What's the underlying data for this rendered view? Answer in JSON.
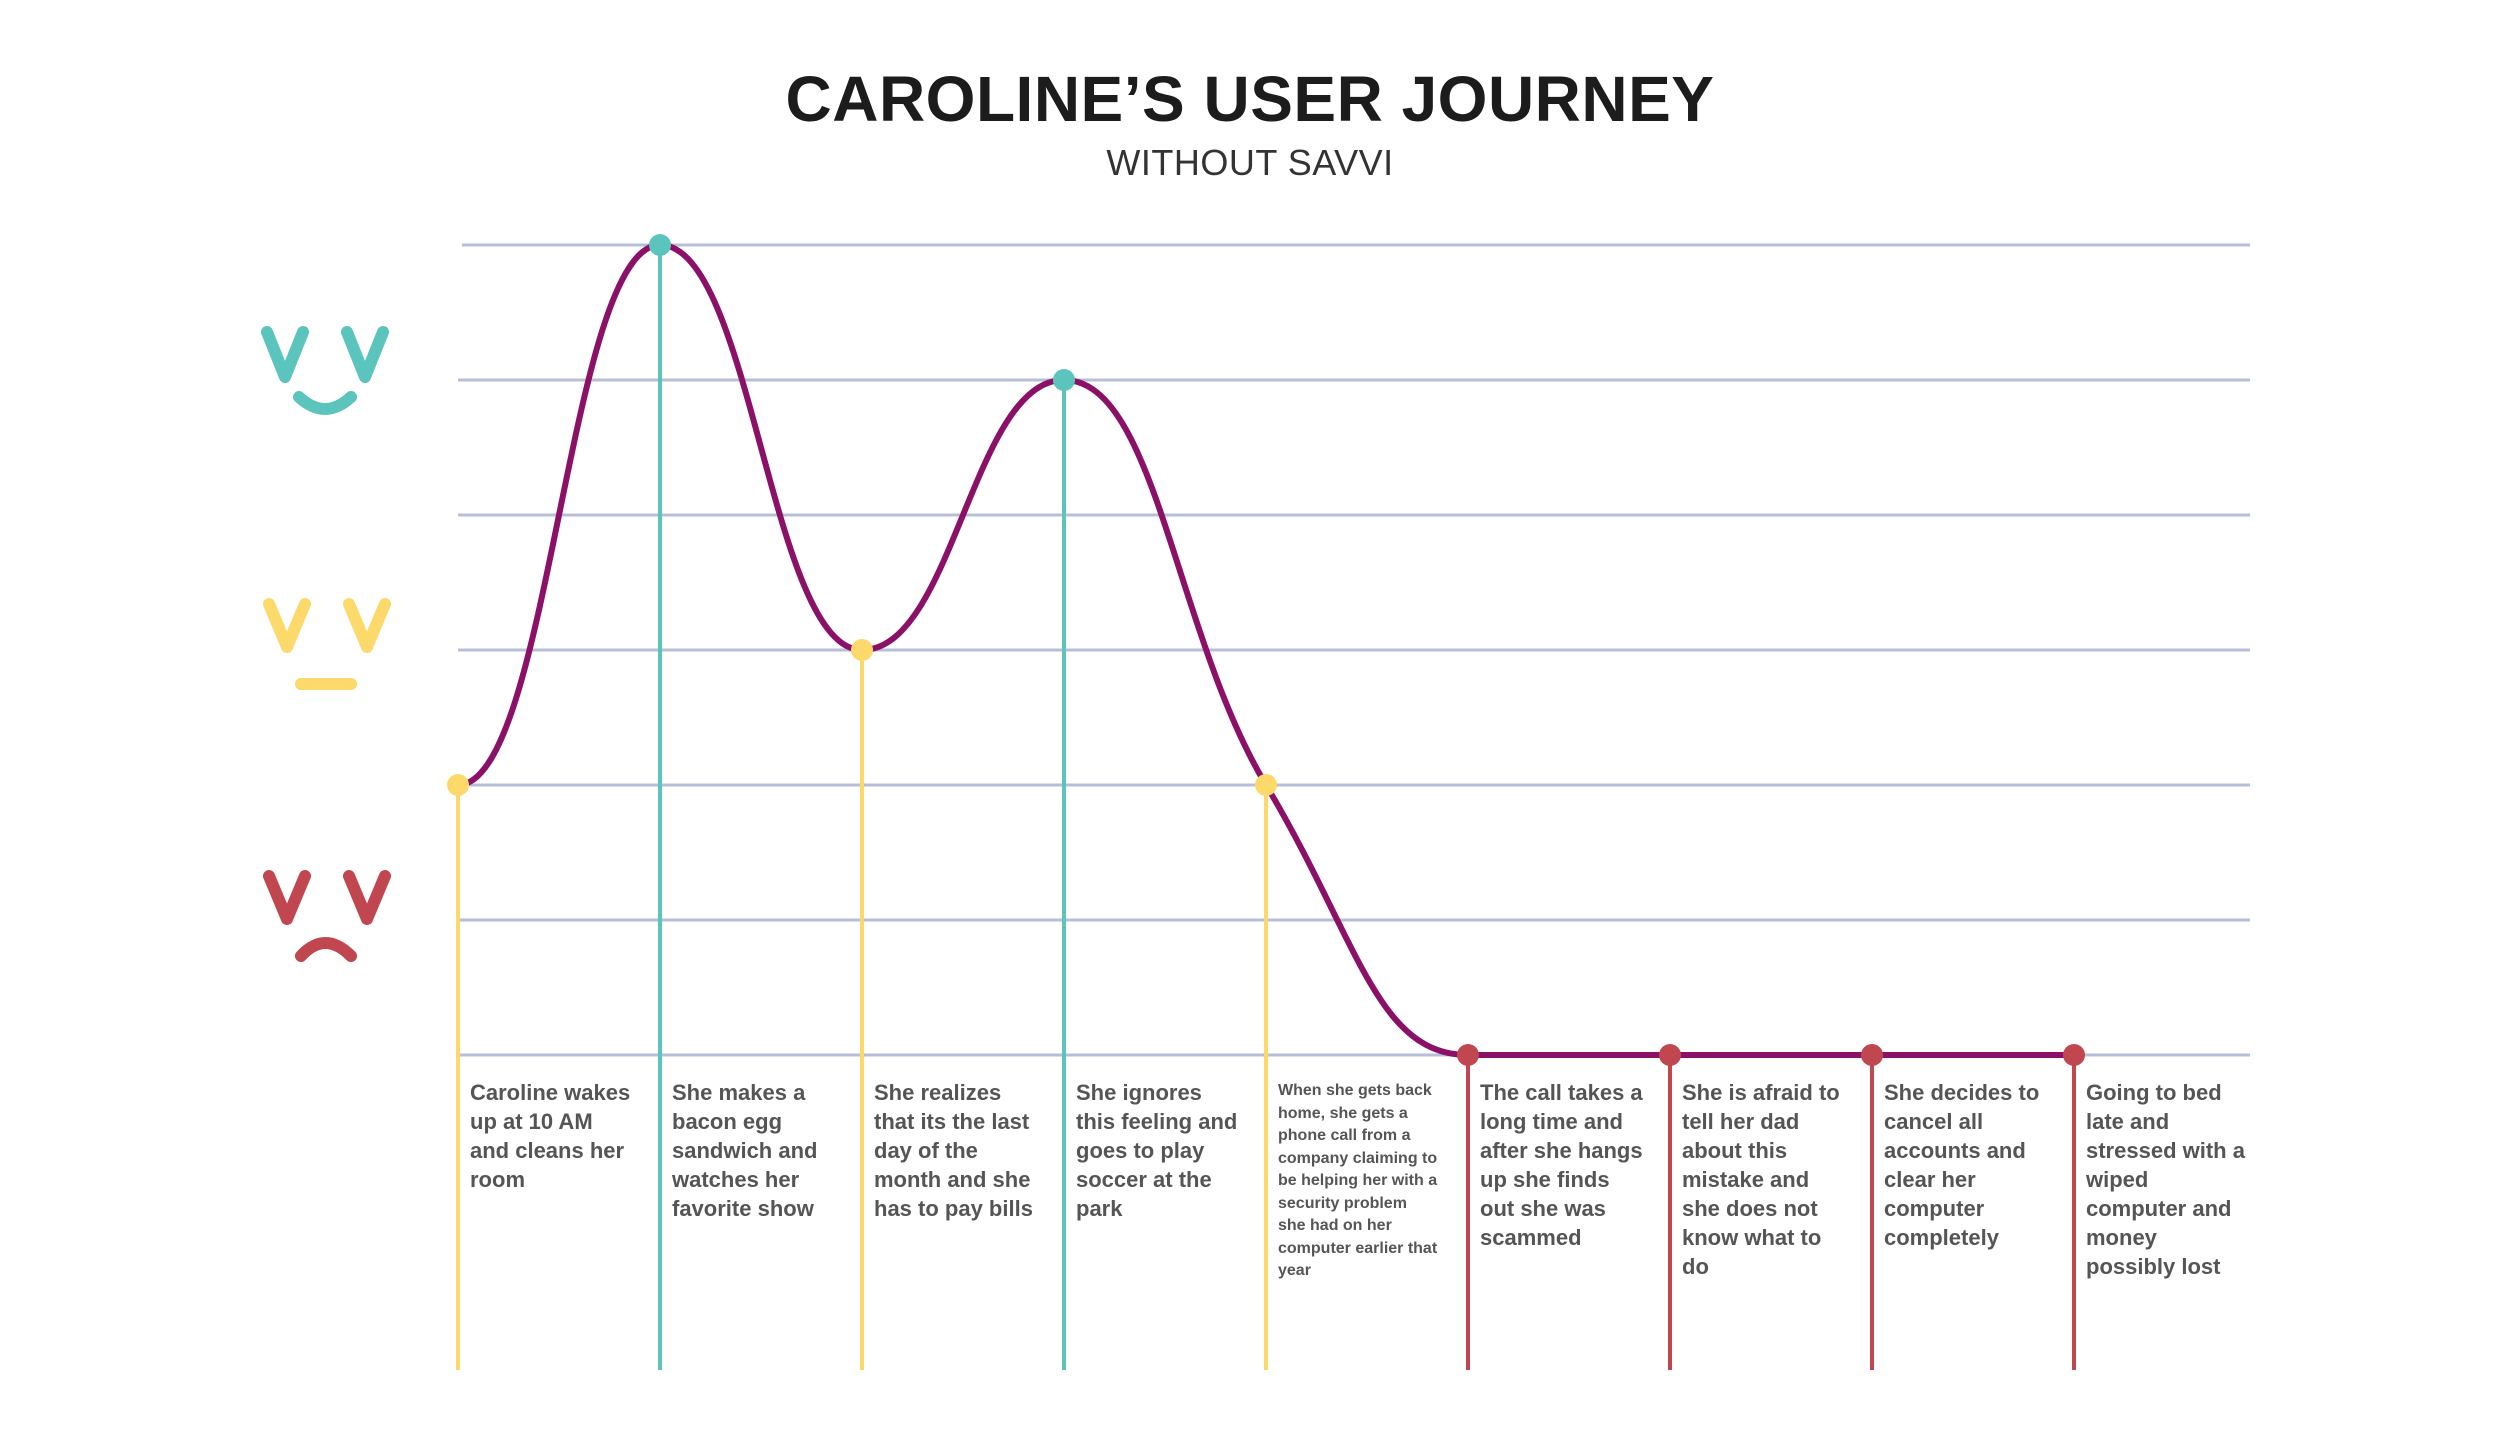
{
  "title": "CAROLINE’S USER JOURNEY",
  "subtitle": "WITHOUT SAVVI",
  "colors": {
    "happy": "#5bc4bd",
    "neutral": "#fcd96a",
    "sad": "#c0464f",
    "curve": "#8b1068",
    "grid": "#b7bfd8",
    "text": "#555555"
  },
  "emotion_scale": [
    {
      "mood": "happy",
      "icon": "happy-face-icon"
    },
    {
      "mood": "neutral",
      "icon": "neutral-face-icon"
    },
    {
      "mood": "sad",
      "icon": "sad-face-icon"
    }
  ],
  "stages": [
    {
      "text": "Caroline wakes up at 10 AM and cleans her room",
      "mood": "neutral",
      "level": 2
    },
    {
      "text": "She makes a bacon egg sandwich and watches her favorite show",
      "mood": "happy",
      "level": 6
    },
    {
      "text": "She realizes that its the last day of the month and she has to pay bills",
      "mood": "neutral",
      "level": 3
    },
    {
      "text": "She ignores this feeling and goes to play soccer at the park",
      "mood": "happy",
      "level": 5
    },
    {
      "text": "When she gets back home, she gets a phone call from a company claiming to be helping her with a security problem she had on her computer earlier that year",
      "mood": "neutral",
      "level": 2
    },
    {
      "text": "The call takes a long time and after she hangs up she finds out she was scammed",
      "mood": "sad",
      "level": 0
    },
    {
      "text": "She is afraid to tell her dad about this mistake and she does not know what to do",
      "mood": "sad",
      "level": 0
    },
    {
      "text": "She decides to cancel all accounts and clear her computer completely",
      "mood": "sad",
      "level": 0
    },
    {
      "text": "Going to bed late and stressed with a wiped computer and money possibly lost",
      "mood": "sad",
      "level": 0
    }
  ]
}
